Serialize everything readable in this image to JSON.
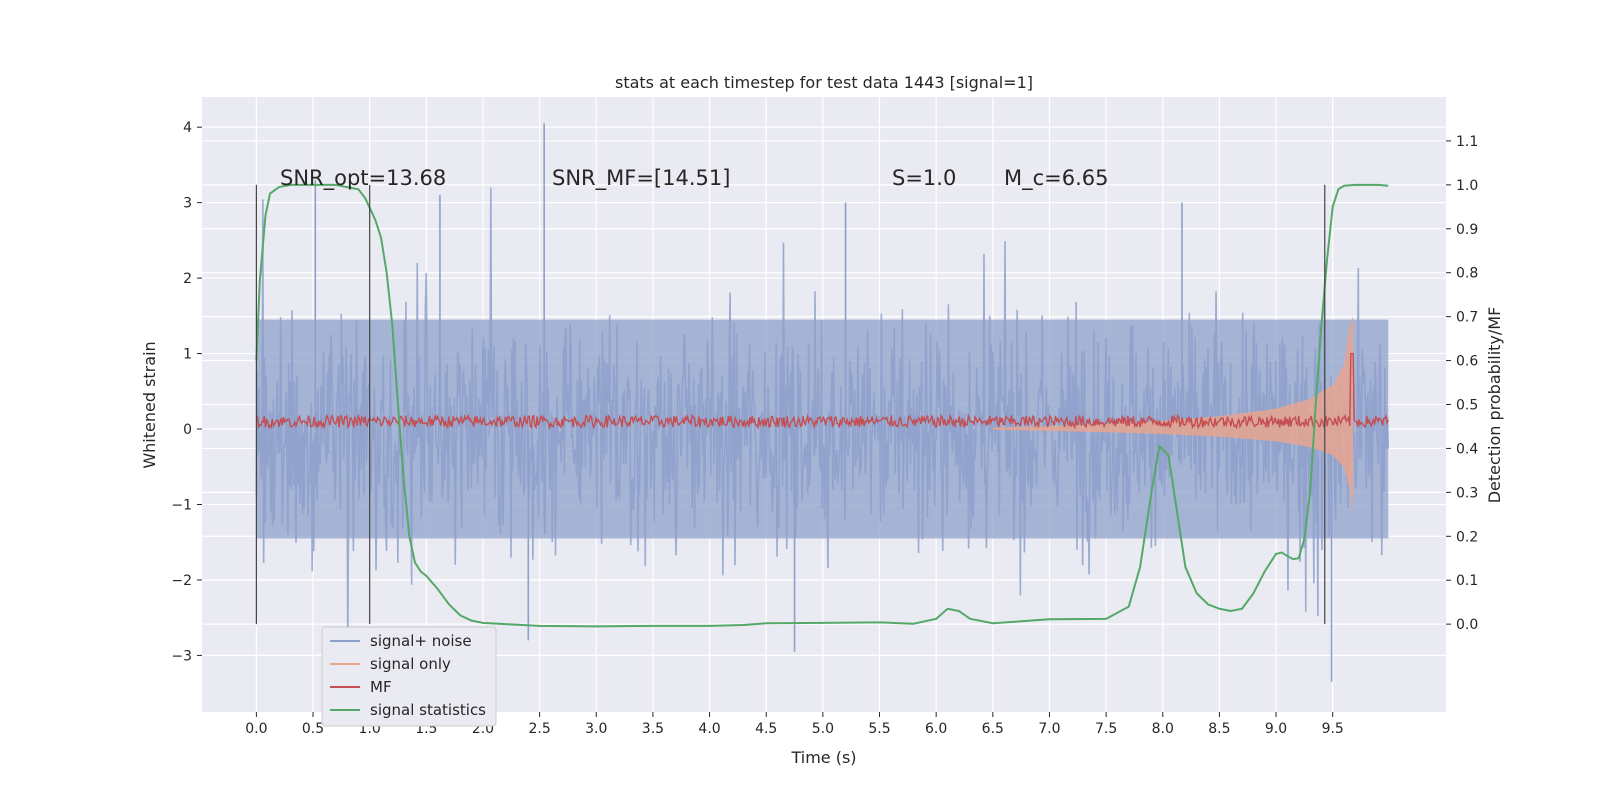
{
  "chart_data": {
    "type": "line",
    "title": "stats at each timestep for test data 1443 [signal=1]",
    "xlabel": "Time (s)",
    "ylabel": "Whitened strain",
    "ylabel_right": "Detection probability/MF",
    "xlim": [
      -0.48,
      10.5
    ],
    "ylim": [
      -3.75,
      4.4
    ],
    "ylim_right": [
      -0.2,
      1.2
    ],
    "x_ticks": [
      0.0,
      0.5,
      1.0,
      1.5,
      2.0,
      2.5,
      3.0,
      3.5,
      4.0,
      4.5,
      5.0,
      5.5,
      6.0,
      6.5,
      7.0,
      7.5,
      8.0,
      8.5,
      9.0,
      9.5
    ],
    "x_tick_labels": [
      "0.0",
      "0.5",
      "1.0",
      "1.5",
      "2.0",
      "2.5",
      "3.0",
      "3.5",
      "4.0",
      "4.5",
      "5.0",
      "5.5",
      "6.0",
      "6.5",
      "7.0",
      "7.5",
      "8.0",
      "8.5",
      "9.0",
      "9.5"
    ],
    "y_ticks": [
      -3,
      -2,
      -1,
      0,
      1,
      2,
      3,
      4
    ],
    "y_tick_labels": [
      "−3",
      "−2",
      "−1",
      "0",
      "1",
      "2",
      "3",
      "4"
    ],
    "y_right_ticks": [
      0.0,
      0.1,
      0.2,
      0.3,
      0.4,
      0.5,
      0.6,
      0.7,
      0.8,
      0.9,
      1.0,
      1.1
    ],
    "y_right_tick_labels": [
      "0.0",
      "0.1",
      "0.2",
      "0.3",
      "0.4",
      "0.5",
      "0.6",
      "0.7",
      "0.8",
      "0.9",
      "1.0",
      "1.1"
    ],
    "grid": true,
    "legend_position": "lower-left",
    "annotations": [
      {
        "id": "snr-opt",
        "text": "SNR_opt=13.68"
      },
      {
        "id": "snr-mf",
        "text": "SNR_MF=[14.51]"
      },
      {
        "id": "s-value",
        "text": "S=1.0"
      },
      {
        "id": "mc-value",
        "text": "M_c=6.65"
      }
    ],
    "vertical_markers_x": [
      0.0,
      1.0,
      9.43
    ],
    "series": [
      {
        "name": "signal+ noise",
        "axis": "left",
        "color": "#8da0cb",
        "x_range": [
          0.0,
          9.99
        ],
        "envelope_dense": {
          "low": -1.45,
          "high": 1.45
        },
        "notable_peaks": [
          [
            2.54,
            4.05
          ],
          [
            0.52,
            3.3
          ],
          [
            1.62,
            3.1
          ],
          [
            5.2,
            3.0
          ],
          [
            8.17,
            3.0
          ],
          [
            4.75,
            -2.95
          ],
          [
            9.49,
            -3.35
          ],
          [
            2.4,
            -2.8
          ]
        ]
      },
      {
        "name": "signal only",
        "axis": "left",
        "color": "#e8a48f",
        "x": [
          6.5,
          7.0,
          7.5,
          8.0,
          8.5,
          9.0,
          9.3,
          9.5,
          9.6,
          9.65,
          9.68
        ],
        "amplitude": [
          0.02,
          0.04,
          0.07,
          0.11,
          0.17,
          0.27,
          0.4,
          0.58,
          0.85,
          1.35,
          1.5
        ],
        "end_dip": -1.1
      },
      {
        "name": "MF",
        "axis": "left",
        "color": "#c44e52",
        "baseline": 0.1,
        "noise_amplitude": 0.1,
        "peak": [
          9.67,
          1.0
        ]
      },
      {
        "name": "signal statistics",
        "axis": "right",
        "color": "#55a868",
        "x": [
          0.0,
          0.03,
          0.08,
          0.12,
          0.2,
          0.3,
          0.5,
          0.7,
          0.9,
          0.96,
          1.05,
          1.1,
          1.15,
          1.2,
          1.25,
          1.3,
          1.35,
          1.4,
          1.45,
          1.5,
          1.6,
          1.7,
          1.8,
          1.9,
          2.0,
          2.2,
          2.5,
          3.0,
          3.5,
          4.0,
          4.3,
          4.5,
          5.0,
          5.5,
          5.8,
          6.0,
          6.1,
          6.2,
          6.3,
          6.5,
          7.0,
          7.5,
          7.7,
          7.8,
          7.9,
          7.97,
          8.05,
          8.1,
          8.2,
          8.3,
          8.4,
          8.5,
          8.6,
          8.7,
          8.8,
          8.9,
          9.0,
          9.05,
          9.1,
          9.15,
          9.2,
          9.25,
          9.3,
          9.35,
          9.4,
          9.45,
          9.5,
          9.55,
          9.6,
          9.7,
          9.8,
          9.9,
          9.99
        ],
        "y": [
          0.6,
          0.78,
          0.93,
          0.98,
          0.995,
          1.0,
          1.0,
          1.0,
          0.99,
          0.97,
          0.92,
          0.88,
          0.8,
          0.68,
          0.5,
          0.33,
          0.2,
          0.14,
          0.12,
          0.11,
          0.08,
          0.045,
          0.02,
          0.008,
          0.003,
          0.0,
          -0.004,
          -0.005,
          -0.004,
          -0.004,
          -0.002,
          0.002,
          0.003,
          0.004,
          0.001,
          0.012,
          0.035,
          0.03,
          0.012,
          0.002,
          0.011,
          0.012,
          0.04,
          0.13,
          0.3,
          0.405,
          0.385,
          0.3,
          0.13,
          0.07,
          0.045,
          0.035,
          0.03,
          0.035,
          0.07,
          0.12,
          0.16,
          0.163,
          0.155,
          0.148,
          0.15,
          0.195,
          0.3,
          0.5,
          0.68,
          0.83,
          0.95,
          0.99,
          0.998,
          1.0,
          1.0,
          1.0,
          0.998
        ]
      }
    ]
  }
}
